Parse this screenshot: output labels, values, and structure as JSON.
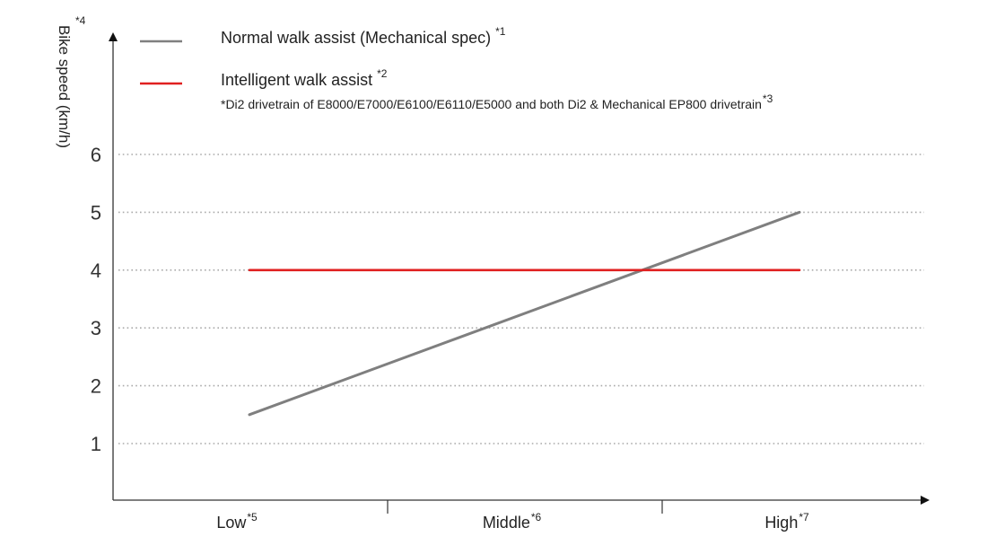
{
  "chart_data": {
    "type": "line",
    "ylabel": "Bike speed (km/h)",
    "ylabel_note": "*4",
    "ylim": [
      0,
      6.8
    ],
    "yticks": [
      1,
      2,
      3,
      4,
      5,
      6
    ],
    "categories": [
      "Low",
      "Middle",
      "High"
    ],
    "category_notes": [
      "*5",
      "*6",
      "*7"
    ],
    "grid": "horizontal-dotted",
    "legend_position": "top-left",
    "series": [
      {
        "name": "Normal walk assist (Mechanical spec)",
        "name_note": "*1",
        "color": "#7f7f7f",
        "x": [
          0,
          2
        ],
        "values": [
          1.5,
          5.0
        ]
      },
      {
        "name": "Intelligent walk assist",
        "name_note": "*2",
        "color": "#e02020",
        "x": [
          0,
          2
        ],
        "values": [
          4.0,
          4.0
        ]
      }
    ],
    "legend_footnote": "*Di2 drivetrain of E8000/E7000/E6100/E6110/E5000 and both Di2 & Mechanical EP800 drivetrain",
    "legend_footnote_note": "*3"
  },
  "colors": {
    "axis": "#333333",
    "grid": "#aaaaaa"
  }
}
